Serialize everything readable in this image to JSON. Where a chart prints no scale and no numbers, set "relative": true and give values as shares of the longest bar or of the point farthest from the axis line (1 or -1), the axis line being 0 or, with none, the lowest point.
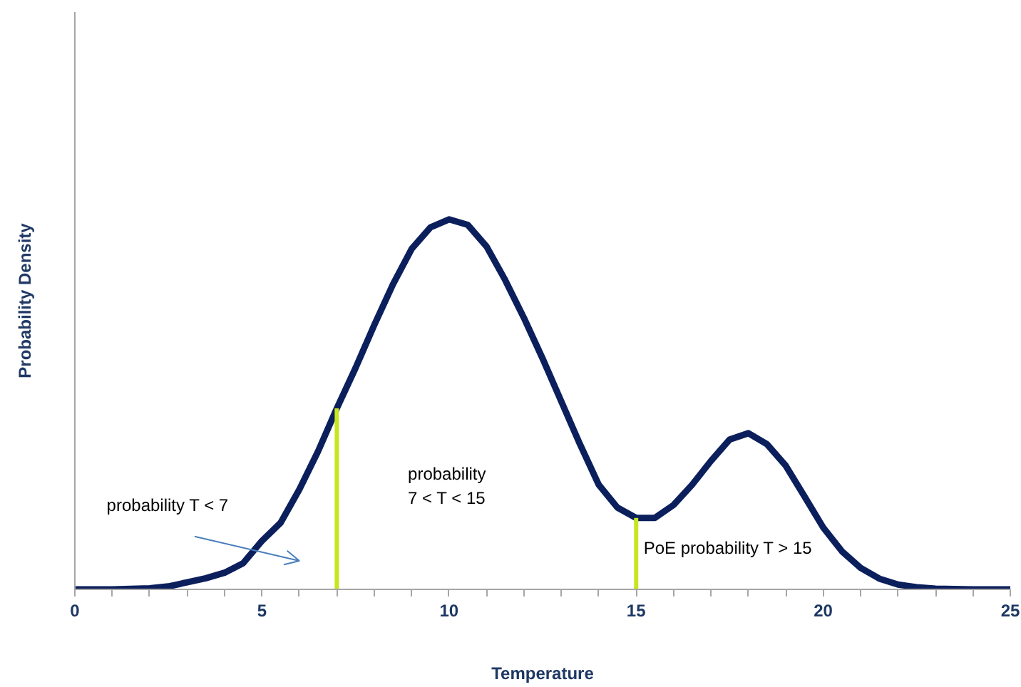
{
  "chart_data": {
    "type": "line",
    "relative": true,
    "xlabel": "Temperature",
    "ylabel": "Probability Density",
    "x": [
      0,
      1,
      2,
      2.5,
      3,
      3.5,
      4,
      4.5,
      5,
      5.5,
      6,
      6.5,
      7,
      7.5,
      8,
      8.5,
      9,
      9.5,
      10,
      10.5,
      11,
      11.5,
      12,
      12.5,
      13,
      13.5,
      14,
      14.5,
      15,
      15.5,
      16,
      16.5,
      17,
      17.5,
      18,
      18.5,
      19,
      19.5,
      20,
      20.5,
      21,
      21.5,
      22,
      22.5,
      23,
      24,
      25
    ],
    "series": [
      {
        "color": "#0b1f5c",
        "values": [
          0,
          0,
          0.003,
          0.008,
          0.019,
          0.03,
          0.045,
          0.071,
          0.131,
          0.18,
          0.27,
          0.373,
          0.489,
          0.598,
          0.714,
          0.824,
          0.92,
          0.978,
          1,
          0.985,
          0.927,
          0.836,
          0.734,
          0.624,
          0.508,
          0.392,
          0.283,
          0.221,
          0.193,
          0.193,
          0.228,
          0.283,
          0.347,
          0.405,
          0.422,
          0.392,
          0.334,
          0.251,
          0.167,
          0.103,
          0.058,
          0.029,
          0.013,
          0.006,
          0.002,
          0,
          0
        ]
      }
    ],
    "xlim": [
      0,
      25
    ],
    "xticks": [
      0,
      5,
      10,
      15,
      20,
      25
    ],
    "ref_lines": [
      {
        "axis": "x",
        "value": 7,
        "color": "#c8e61e"
      },
      {
        "axis": "x",
        "value": 15,
        "color": "#c8e61e"
      }
    ],
    "annotations": [
      "probability T < 7",
      "probability\n7 < T < 15",
      "PoE probability T > 15"
    ],
    "grid": false,
    "marker": "none",
    "line_style": "solid"
  }
}
